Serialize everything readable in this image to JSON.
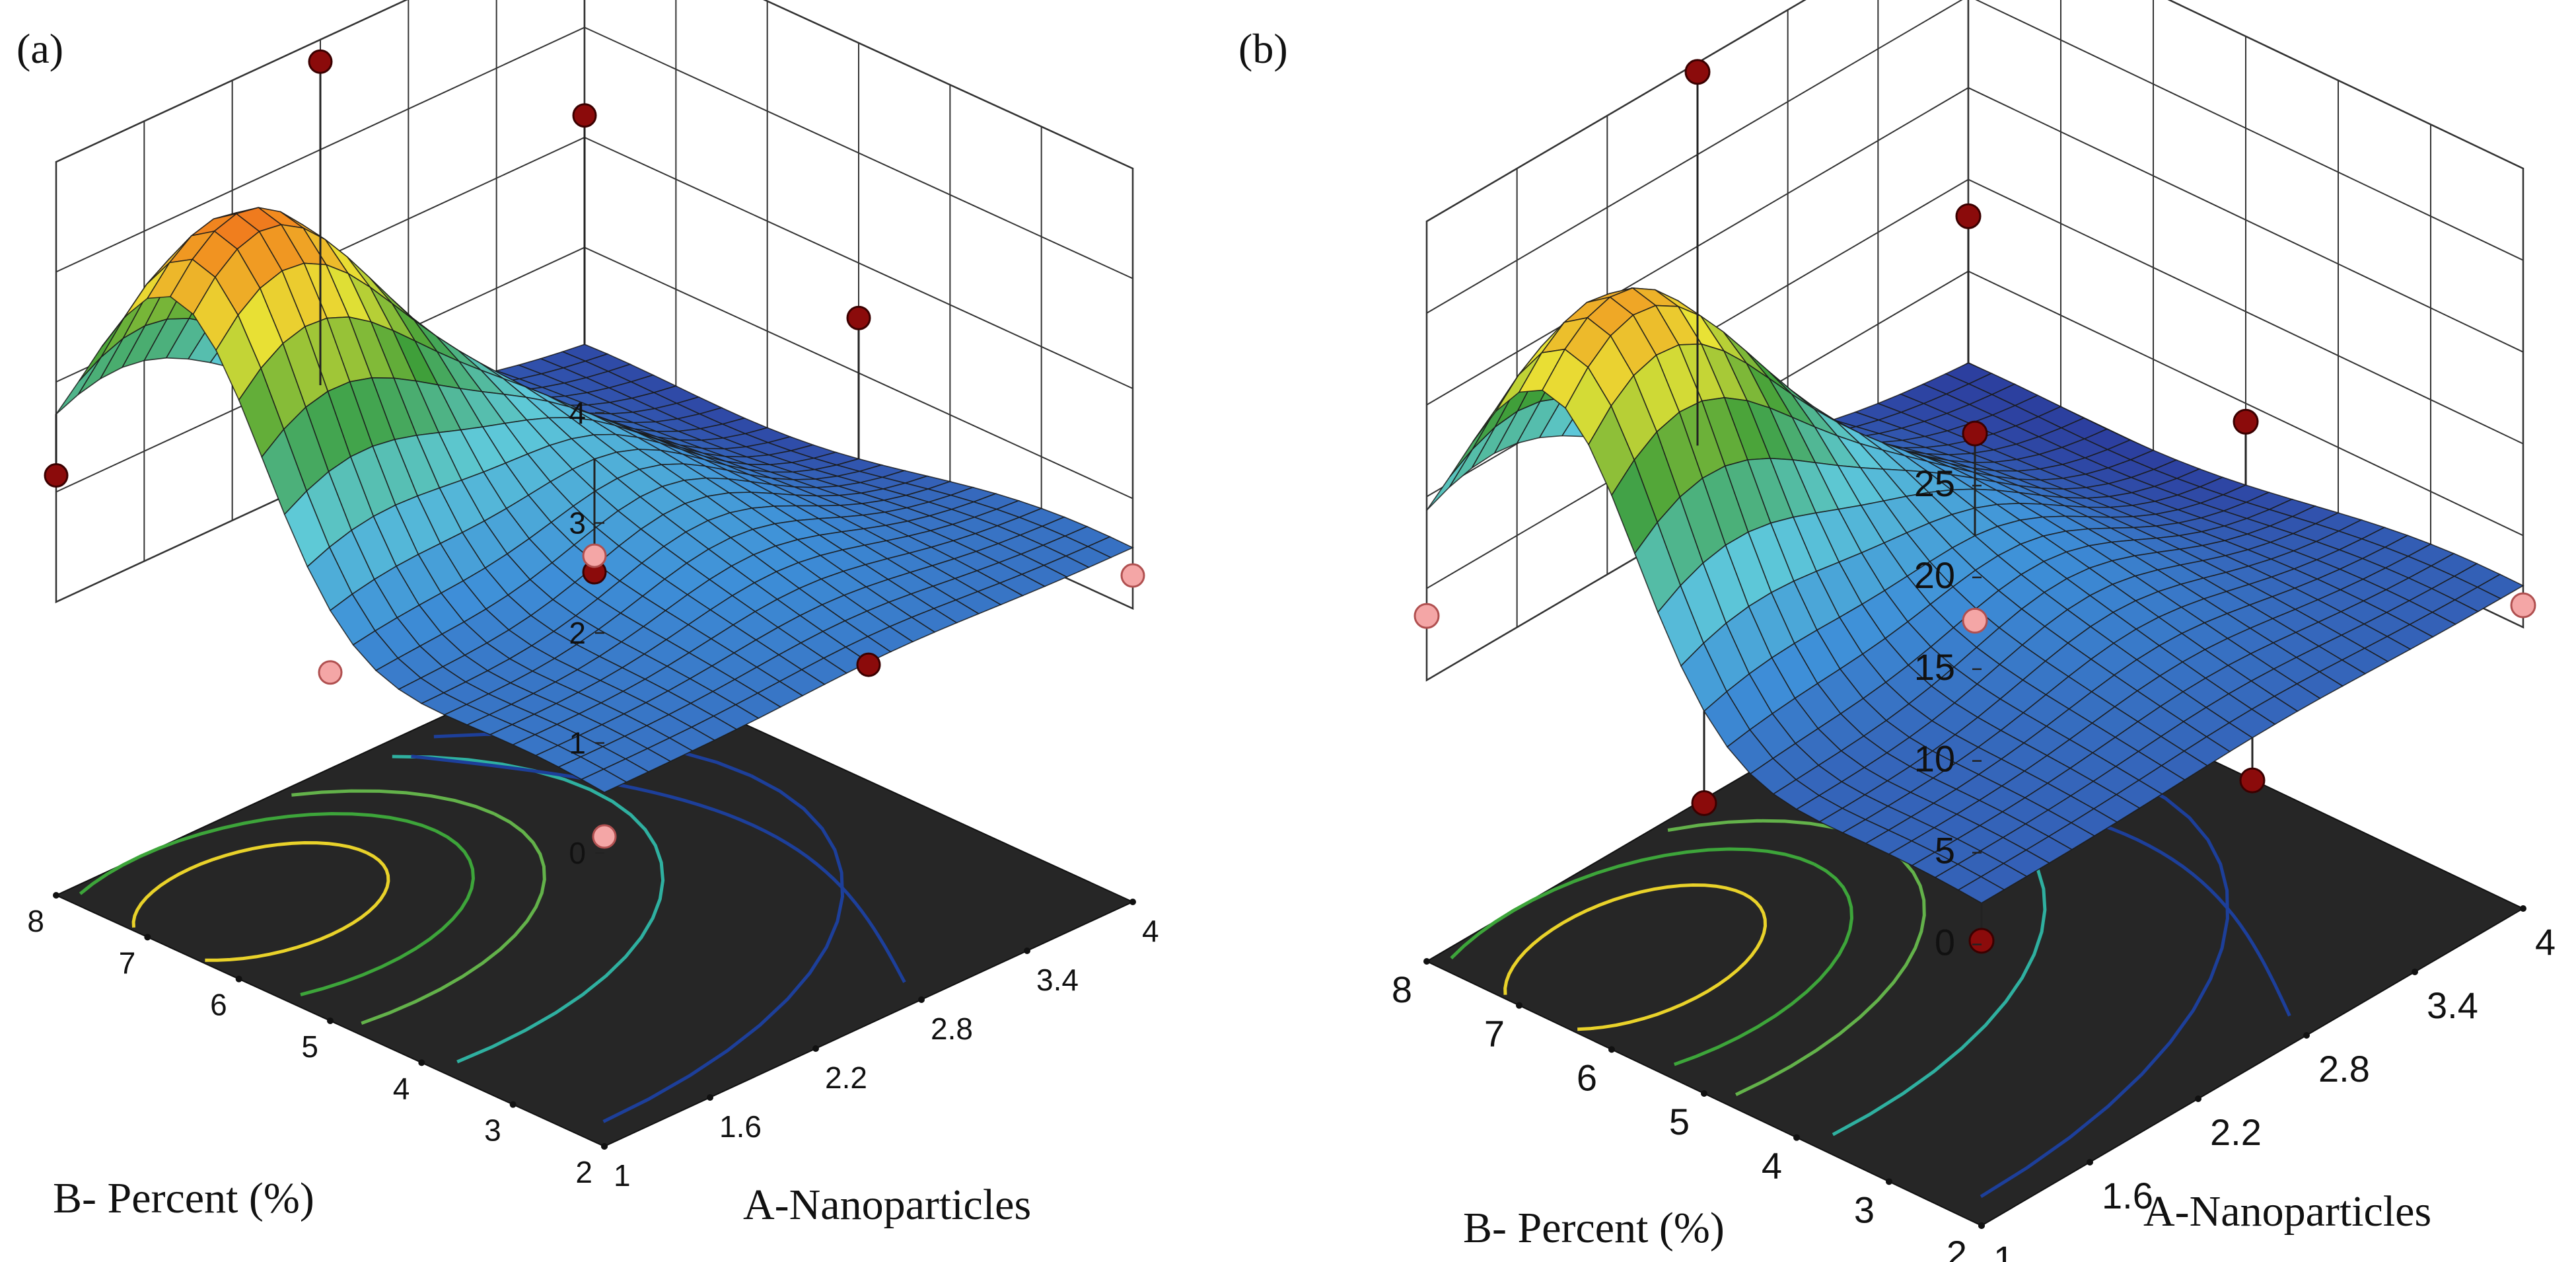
{
  "chart_data": [
    {
      "panel": "(a)",
      "type": "surface3d",
      "xlabel": "A-Nanoparticles",
      "ylabel": "B- Percent (%)",
      "x_ticks": [
        "1",
        "1.6",
        "2.2",
        "2.8",
        "3.4",
        "4"
      ],
      "y_ticks": [
        "2",
        "3",
        "4",
        "5",
        "6",
        "7",
        "8"
      ],
      "z_ticks": [
        "0",
        "1",
        "2",
        "3",
        "4"
      ],
      "xlim": [
        1,
        4
      ],
      "ylim": [
        2,
        8
      ],
      "zlim": [
        0,
        4
      ],
      "peak": {
        "A": 1.4,
        "B": 6.7,
        "response": 3.6
      },
      "design_points": [
        {
          "A": 1,
          "B": 8,
          "response": 1.15,
          "above_surface": true
        },
        {
          "A": 2.5,
          "B": 8,
          "response": 3.8,
          "above_surface": true
        },
        {
          "A": 4,
          "B": 8,
          "response": 2.2,
          "above_surface": true
        },
        {
          "A": 4,
          "B": 5,
          "response": 1.5,
          "above_surface": true
        },
        {
          "A": 2.5,
          "B": 5,
          "response": 0.3,
          "above_surface": true
        },
        {
          "A": 2.5,
          "B": 2,
          "response": 0.6,
          "above_surface": true
        },
        {
          "A": 1,
          "B": 5,
          "response": 0.5,
          "above_surface": false
        },
        {
          "A": 1,
          "B": 2,
          "response": 0.15,
          "above_surface": false
        },
        {
          "A": 4,
          "B": 2,
          "response": 0.3,
          "above_surface": false
        },
        {
          "A": 2.5,
          "B": 5,
          "response": 0.45,
          "above_surface": false
        }
      ]
    },
    {
      "panel": "(b)",
      "type": "surface3d",
      "xlabel": "A-Nanoparticles",
      "ylabel": "B- Percent (%)",
      "x_ticks": [
        "1",
        "1.6",
        "2.2",
        "2.8",
        "3.4",
        "4"
      ],
      "y_ticks": [
        "2",
        "3",
        "4",
        "5",
        "6",
        "7",
        "8"
      ],
      "z_ticks": [
        "0",
        "5",
        "10",
        "15",
        "20",
        "25"
      ],
      "xlim": [
        1,
        4
      ],
      "ylim": [
        2,
        8
      ],
      "zlim": [
        0,
        25
      ],
      "peak": {
        "A": 1.4,
        "B": 6.7,
        "response": 22
      },
      "design_points": [
        {
          "A": 2.5,
          "B": 8,
          "response": 24.5,
          "above_surface": true
        },
        {
          "A": 4,
          "B": 8,
          "response": 8,
          "above_surface": true
        },
        {
          "A": 4,
          "B": 5,
          "response": 4,
          "above_surface": true
        },
        {
          "A": 2.5,
          "B": 5,
          "response": 12,
          "above_surface": true
        },
        {
          "A": 1,
          "B": 5,
          "response": 0.5,
          "above_surface": true
        },
        {
          "A": 2.5,
          "B": 2,
          "response": 0.3,
          "above_surface": true
        },
        {
          "A": 1,
          "B": 2,
          "response": 0.2,
          "above_surface": true
        },
        {
          "A": 1,
          "B": 8,
          "response": 3.5,
          "above_surface": false
        },
        {
          "A": 4,
          "B": 2,
          "response": 1.2,
          "above_surface": false
        },
        {
          "A": 2.5,
          "B": 5,
          "response": 1.8,
          "above_surface": false
        }
      ]
    }
  ]
}
